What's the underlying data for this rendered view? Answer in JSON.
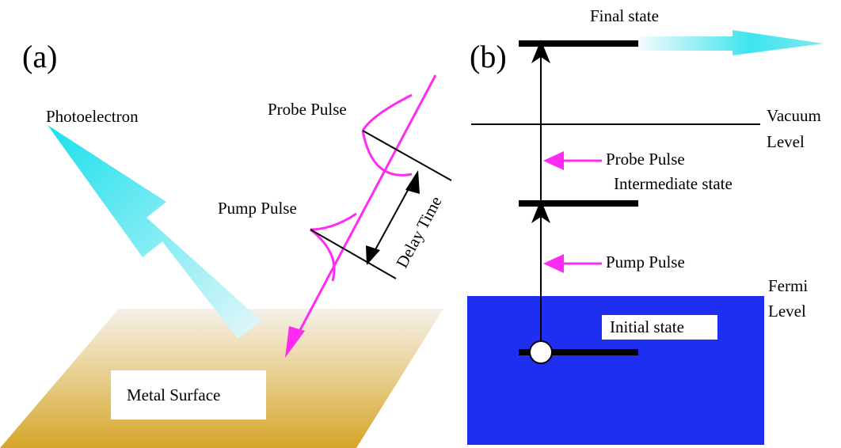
{
  "panel_a": {
    "label": "(a)",
    "photoelectron": "Photoelectron",
    "probe_pulse": "Probe Pulse",
    "pump_pulse": "Pump Pulse",
    "delay_time": "Delay Time",
    "surface": "Metal Surface"
  },
  "panel_b": {
    "label": "(b)",
    "final_state": "Final state",
    "vacuum_level": [
      "Vacuum",
      "Level"
    ],
    "probe_pulse": "Probe Pulse",
    "intermediate_state": "Intermediate state",
    "pump_pulse": "Pump Pulse",
    "fermi_level": [
      "Fermi",
      "Level"
    ],
    "initial_state": "Initial state"
  }
}
